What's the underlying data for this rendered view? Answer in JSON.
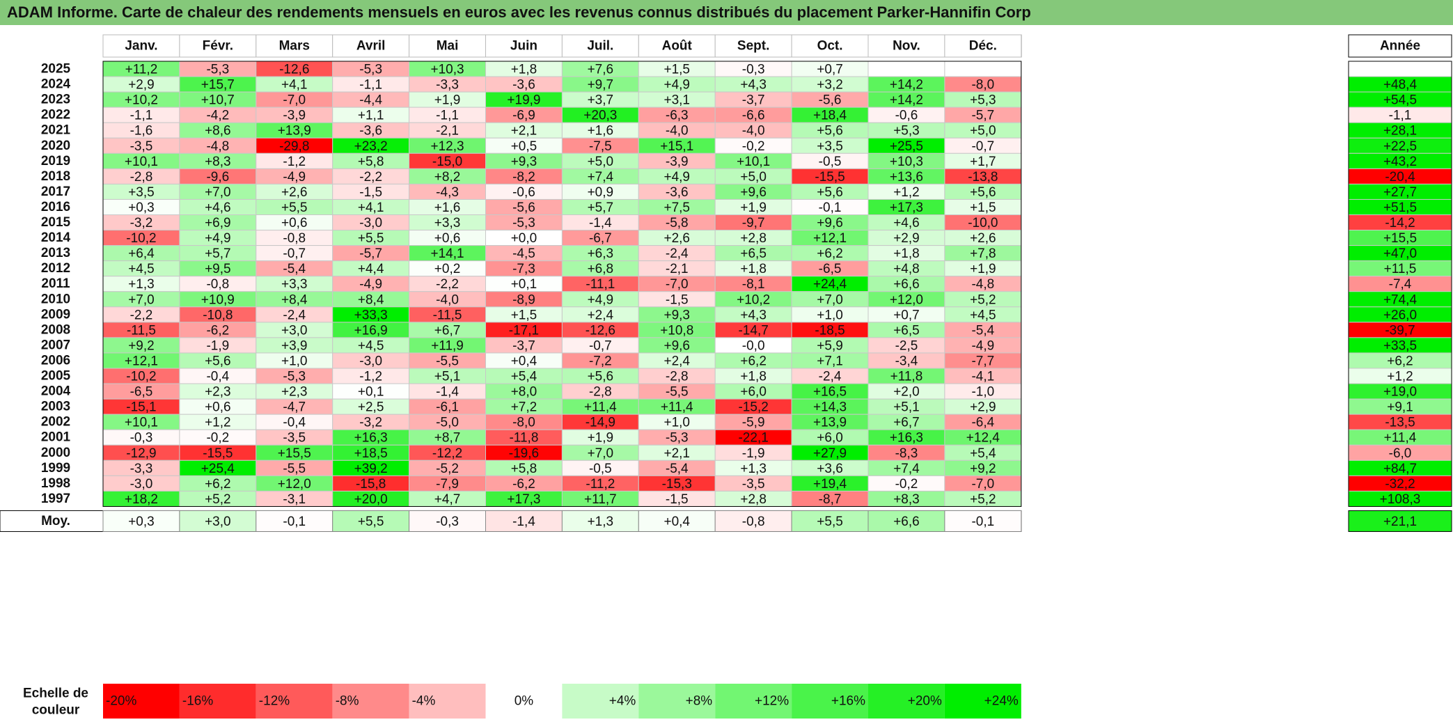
{
  "title": "ADAM Informe. Carte de chaleur des rendements mensuels en euros avec les revenus connus distribués du placement Parker-Hannifin Corp",
  "chart_data": {
    "type": "heatmap",
    "months": [
      "Janv.",
      "Févr.",
      "Mars",
      "Avril",
      "Mai",
      "Juin",
      "Juil.",
      "Août",
      "Sept.",
      "Oct.",
      "Nov.",
      "Déc."
    ],
    "year_header": "Année",
    "rows": [
      {
        "year": "2025",
        "values": [
          "+11,2",
          "-5,3",
          "-12,6",
          "-5,3",
          "+10,3",
          "+1,8",
          "+7,6",
          "+1,5",
          "-0,3",
          "+0,7",
          "",
          ""
        ],
        "annual": ""
      },
      {
        "year": "2024",
        "values": [
          "+2,9",
          "+15,7",
          "+4,1",
          "-1,1",
          "-3,3",
          "-3,6",
          "+9,7",
          "+4,9",
          "+4,3",
          "+3,2",
          "+14,2",
          "-8,0"
        ],
        "annual": "+48,4"
      },
      {
        "year": "2023",
        "values": [
          "+10,2",
          "+10,7",
          "-7,0",
          "-4,4",
          "+1,9",
          "+19,9",
          "+3,7",
          "+3,1",
          "-3,7",
          "-5,6",
          "+14,2",
          "+5,3"
        ],
        "annual": "+54,5"
      },
      {
        "year": "2022",
        "values": [
          "-1,1",
          "-4,2",
          "-3,9",
          "+1,1",
          "-1,1",
          "-6,9",
          "+20,3",
          "-6,3",
          "-6,6",
          "+18,4",
          "-0,6",
          "-5,7"
        ],
        "annual": "-1,1"
      },
      {
        "year": "2021",
        "values": [
          "-1,6",
          "+8,6",
          "+13,9",
          "-3,6",
          "-2,1",
          "+2,1",
          "+1,6",
          "-4,0",
          "-4,0",
          "+5,6",
          "+5,3",
          "+5,0"
        ],
        "annual": "+28,1"
      },
      {
        "year": "2020",
        "values": [
          "-3,5",
          "-4,8",
          "-29,8",
          "+23,2",
          "+12,3",
          "+0,5",
          "-7,5",
          "+15,1",
          "-0,2",
          "+3,5",
          "+25,5",
          "-0,7"
        ],
        "annual": "+22,5"
      },
      {
        "year": "2019",
        "values": [
          "+10,1",
          "+8,3",
          "-1,2",
          "+5,8",
          "-15,0",
          "+9,3",
          "+5,0",
          "-3,9",
          "+10,1",
          "-0,5",
          "+10,3",
          "+1,7"
        ],
        "annual": "+43,2"
      },
      {
        "year": "2018",
        "values": [
          "-2,8",
          "-9,6",
          "-4,9",
          "-2,2",
          "+8,2",
          "-8,2",
          "+7,4",
          "+4,9",
          "+5,0",
          "-15,5",
          "+13,6",
          "-13,8"
        ],
        "annual": "-20,4"
      },
      {
        "year": "2017",
        "values": [
          "+3,5",
          "+7,0",
          "+2,6",
          "-1,5",
          "-4,3",
          "-0,6",
          "+0,9",
          "-3,6",
          "+9,6",
          "+5,6",
          "+1,2",
          "+5,6"
        ],
        "annual": "+27,7"
      },
      {
        "year": "2016",
        "values": [
          "+0,3",
          "+4,6",
          "+5,5",
          "+4,1",
          "+1,6",
          "-5,6",
          "+5,7",
          "+7,5",
          "+1,9",
          "-0,1",
          "+17,3",
          "+1,5"
        ],
        "annual": "+51,5"
      },
      {
        "year": "2015",
        "values": [
          "-3,2",
          "+6,9",
          "+0,6",
          "-3,0",
          "+3,3",
          "-5,3",
          "-1,4",
          "-5,8",
          "-9,7",
          "+9,6",
          "+4,6",
          "-10,0"
        ],
        "annual": "-14,2"
      },
      {
        "year": "2014",
        "values": [
          "-10,2",
          "+4,9",
          "-0,8",
          "+5,5",
          "+0,6",
          "+0,0",
          "-6,7",
          "+2,6",
          "+2,8",
          "+12,1",
          "+2,9",
          "+2,6"
        ],
        "annual": "+15,5"
      },
      {
        "year": "2013",
        "values": [
          "+6,4",
          "+5,7",
          "-0,7",
          "-5,7",
          "+14,1",
          "-4,5",
          "+6,3",
          "-2,4",
          "+6,5",
          "+6,2",
          "+1,8",
          "+7,8"
        ],
        "annual": "+47,0"
      },
      {
        "year": "2012",
        "values": [
          "+4,5",
          "+9,5",
          "-5,4",
          "+4,4",
          "+0,2",
          "-7,3",
          "+6,8",
          "-2,1",
          "+1,8",
          "-6,5",
          "+4,8",
          "+1,9"
        ],
        "annual": "+11,5"
      },
      {
        "year": "2011",
        "values": [
          "+1,3",
          "-0,8",
          "+3,3",
          "-4,9",
          "-2,2",
          "+0,1",
          "-11,1",
          "-7,0",
          "-8,1",
          "+24,4",
          "+6,6",
          "-4,8"
        ],
        "annual": "-7,4"
      },
      {
        "year": "2010",
        "values": [
          "+7,0",
          "+10,9",
          "+8,4",
          "+8,4",
          "-4,0",
          "-8,9",
          "+4,9",
          "-1,5",
          "+10,2",
          "+7,0",
          "+12,0",
          "+5,2"
        ],
        "annual": "+74,4"
      },
      {
        "year": "2009",
        "values": [
          "-2,2",
          "-10,8",
          "-2,4",
          "+33,3",
          "-11,5",
          "+1,5",
          "+2,4",
          "+9,3",
          "+4,3",
          "+1,0",
          "+0,7",
          "+4,5"
        ],
        "annual": "+26,0"
      },
      {
        "year": "2008",
        "values": [
          "-11,5",
          "-6,2",
          "+3,0",
          "+16,9",
          "+6,7",
          "-17,1",
          "-12,6",
          "+10,8",
          "-14,7",
          "-18,5",
          "+6,5",
          "-5,4"
        ],
        "annual": "-39,7"
      },
      {
        "year": "2007",
        "values": [
          "+9,2",
          "-1,9",
          "+3,9",
          "+4,5",
          "+11,9",
          "-3,7",
          "-0,7",
          "+9,6",
          "-0,0",
          "+5,9",
          "-2,5",
          "-4,9"
        ],
        "annual": "+33,5"
      },
      {
        "year": "2006",
        "values": [
          "+12,1",
          "+5,6",
          "+1,0",
          "-3,0",
          "-5,5",
          "+0,4",
          "-7,2",
          "+2,4",
          "+6,2",
          "+7,1",
          "-3,4",
          "-7,7"
        ],
        "annual": "+6,2"
      },
      {
        "year": "2005",
        "values": [
          "-10,2",
          "-0,4",
          "-5,3",
          "-1,2",
          "+5,1",
          "+5,4",
          "+5,6",
          "-2,8",
          "+1,8",
          "-2,4",
          "+11,8",
          "-4,1"
        ],
        "annual": "+1,2"
      },
      {
        "year": "2004",
        "values": [
          "-6,5",
          "+2,3",
          "+2,3",
          "+0,1",
          "-1,4",
          "+8,0",
          "-2,8",
          "-5,5",
          "+6,0",
          "+16,5",
          "+2,0",
          "-1,0"
        ],
        "annual": "+19,0"
      },
      {
        "year": "2003",
        "values": [
          "-15,1",
          "+0,6",
          "-4,7",
          "+2,5",
          "-6,1",
          "+7,2",
          "+11,4",
          "+11,4",
          "-15,2",
          "+14,3",
          "+5,1",
          "+2,9"
        ],
        "annual": "+9,1"
      },
      {
        "year": "2002",
        "values": [
          "+10,1",
          "+1,2",
          "-0,4",
          "-3,2",
          "-5,0",
          "-8,0",
          "-14,9",
          "+1,0",
          "-5,9",
          "+13,9",
          "+6,7",
          "-6,4"
        ],
        "annual": "-13,5"
      },
      {
        "year": "2001",
        "values": [
          "-0,3",
          "-0,2",
          "-3,5",
          "+16,3",
          "+8,7",
          "-11,8",
          "+1,9",
          "-5,3",
          "-22,1",
          "+6,0",
          "+16,3",
          "+12,4"
        ],
        "annual": "+11,4"
      },
      {
        "year": "2000",
        "values": [
          "-12,9",
          "-15,5",
          "+15,5",
          "+18,5",
          "-12,2",
          "-19,6",
          "+7,0",
          "+2,1",
          "-1,9",
          "+27,9",
          "-8,3",
          "+5,4"
        ],
        "annual": "-6,0"
      },
      {
        "year": "1999",
        "values": [
          "-3,3",
          "+25,4",
          "-5,5",
          "+39,2",
          "-5,2",
          "+5,8",
          "-0,5",
          "-5,4",
          "+1,3",
          "+3,6",
          "+7,4",
          "+9,2"
        ],
        "annual": "+84,7"
      },
      {
        "year": "1998",
        "values": [
          "-3,0",
          "+6,2",
          "+12,0",
          "-15,8",
          "-7,9",
          "-6,2",
          "-11,2",
          "-15,3",
          "-3,5",
          "+19,4",
          "-0,2",
          "-7,0"
        ],
        "annual": "-32,2"
      },
      {
        "year": "1997",
        "values": [
          "+18,2",
          "+5,2",
          "-3,1",
          "+20,0",
          "+4,7",
          "+17,3",
          "+11,7",
          "-1,5",
          "+2,8",
          "-8,7",
          "+8,3",
          "+5,2"
        ],
        "annual": "+108,3"
      }
    ],
    "average": {
      "label": "Moy.",
      "values": [
        "+0,3",
        "+3,0",
        "-0,1",
        "+5,5",
        "-0,3",
        "-1,4",
        "+1,3",
        "+0,4",
        "-0,8",
        "+5,5",
        "+6,6",
        "-0,1"
      ],
      "annual": "+21,1"
    },
    "scale": {
      "label_line1": "Echelle de",
      "label_line2": "couleur",
      "steps": [
        "-20%",
        "-16%",
        "-12%",
        "-8%",
        "-4%",
        "0%",
        "+4%",
        "+8%",
        "+12%",
        "+16%",
        "+20%",
        "+24%"
      ]
    },
    "colors": {
      "negative_max": "#ff0000",
      "neutral": "#ffffff",
      "positive_max": "#00ee00",
      "title_bg": "#85c87a"
    }
  }
}
